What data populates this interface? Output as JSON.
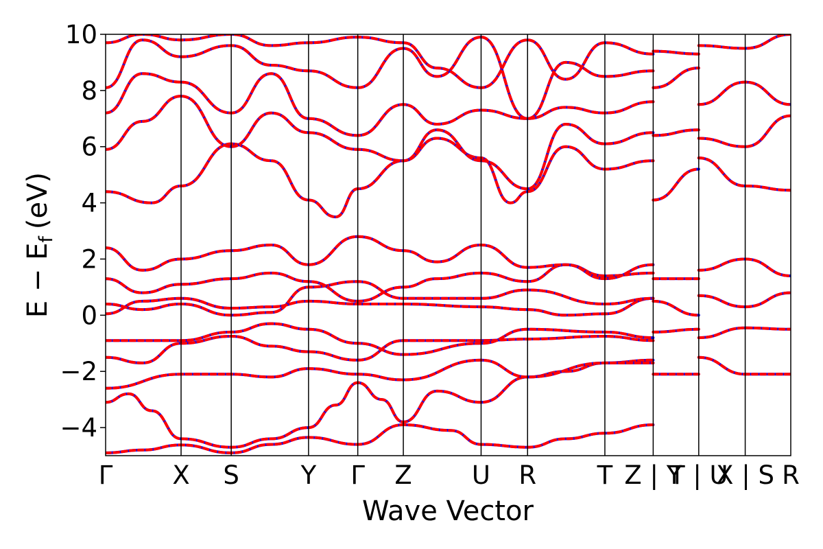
{
  "chart_data": {
    "type": "line",
    "xlabel": "Wave Vector",
    "ylabel": "E − E",
    "ylabel_subscript": "f",
    "ylabel_unit": "(eV)",
    "ylim": [
      -5,
      10
    ],
    "yticks": [
      -4,
      -2,
      0,
      2,
      4,
      6,
      8,
      10
    ],
    "ytick_labels": [
      "−4",
      "−2",
      "0",
      "2",
      "4",
      "6",
      "8",
      "10"
    ],
    "kpoints": [
      {
        "label": "Γ",
        "x": 0.0
      },
      {
        "label": "X",
        "x": 0.164
      },
      {
        "label": "S",
        "x": 0.273
      },
      {
        "label": "Y",
        "x": 0.441
      },
      {
        "label": "Γ",
        "x": 0.548
      },
      {
        "label": "Z",
        "x": 0.647
      },
      {
        "label": "U",
        "x": 0.816
      },
      {
        "label": "R",
        "x": 0.917
      },
      {
        "label": "T",
        "x": 1.085
      },
      {
        "label": "Z | Y",
        "x": 1.19
      },
      {
        "label": "T | U",
        "x": 1.289
      },
      {
        "label": "X | S",
        "x": 1.39
      },
      {
        "label": "R",
        "x": 1.489
      }
    ],
    "grid": false,
    "legend": "none",
    "series_style": [
      {
        "color": "#0000ff",
        "dash": "solid",
        "width": 4
      },
      {
        "color": "#ff0000",
        "dash": "dashed",
        "width": 4
      }
    ],
    "bands": [
      [
        [
          0.0,
          -4.9
        ],
        [
          0.08,
          -4.8
        ],
        [
          0.164,
          -4.62
        ],
        [
          0.273,
          -4.9
        ],
        [
          0.36,
          -4.6
        ],
        [
          0.441,
          -4.35
        ],
        [
          0.548,
          -4.6
        ],
        [
          0.647,
          -3.9
        ],
        [
          0.75,
          -4.1
        ],
        [
          0.816,
          -4.6
        ],
        [
          0.917,
          -4.7
        ],
        [
          1.0,
          -4.4
        ],
        [
          1.085,
          -4.2
        ],
        [
          1.19,
          -3.9
        ]
      ],
      [
        [
          0.0,
          -3.1
        ],
        [
          0.05,
          -2.8
        ],
        [
          0.1,
          -3.4
        ],
        [
          0.164,
          -4.4
        ],
        [
          0.273,
          -4.7
        ],
        [
          0.36,
          -4.4
        ],
        [
          0.441,
          -4.0
        ],
        [
          0.5,
          -3.2
        ],
        [
          0.548,
          -2.4
        ],
        [
          0.6,
          -3.0
        ],
        [
          0.647,
          -3.8
        ],
        [
          0.72,
          -2.7
        ],
        [
          0.816,
          -3.1
        ],
        [
          0.917,
          -2.2
        ],
        [
          1.0,
          -2.0
        ],
        [
          1.085,
          -1.7
        ],
        [
          1.19,
          -1.6
        ]
      ],
      [
        [
          0.0,
          -2.6
        ],
        [
          0.164,
          -2.1
        ],
        [
          0.273,
          -2.1
        ],
        [
          0.36,
          -2.2
        ],
        [
          0.441,
          -1.9
        ],
        [
          0.548,
          -2.1
        ],
        [
          0.647,
          -2.3
        ],
        [
          0.816,
          -1.6
        ],
        [
          0.917,
          -2.2
        ],
        [
          1.085,
          -1.7
        ],
        [
          1.19,
          -1.7
        ]
      ],
      [
        [
          0.0,
          -1.5
        ],
        [
          0.08,
          -1.7
        ],
        [
          0.164,
          -1.0
        ],
        [
          0.273,
          -0.75
        ],
        [
          0.36,
          -1.1
        ],
        [
          0.441,
          -1.3
        ],
        [
          0.548,
          -1.6
        ],
        [
          0.647,
          -0.9
        ],
        [
          0.816,
          -0.9
        ],
        [
          0.917,
          -0.85
        ],
        [
          1.085,
          -0.75
        ],
        [
          1.19,
          -0.9
        ]
      ],
      [
        [
          0.0,
          -0.9
        ],
        [
          0.164,
          -0.9
        ],
        [
          0.273,
          -0.6
        ],
        [
          0.36,
          -0.3
        ],
        [
          0.441,
          -0.5
        ],
        [
          0.548,
          -1.0
        ],
        [
          0.647,
          -1.4
        ],
        [
          0.816,
          -1.0
        ],
        [
          0.917,
          -0.5
        ],
        [
          1.085,
          -0.6
        ],
        [
          1.19,
          -0.8
        ]
      ],
      [
        [
          0.0,
          0.05
        ],
        [
          0.08,
          0.5
        ],
        [
          0.164,
          0.6
        ],
        [
          0.273,
          0.25
        ],
        [
          0.36,
          0.3
        ],
        [
          0.441,
          0.5
        ],
        [
          0.548,
          0.4
        ],
        [
          0.647,
          0.4
        ],
        [
          0.816,
          0.3
        ],
        [
          0.917,
          0.2
        ],
        [
          1.0,
          0.0
        ],
        [
          1.085,
          0.05
        ],
        [
          1.19,
          0.6
        ]
      ],
      [
        [
          0.0,
          0.4
        ],
        [
          0.08,
          0.2
        ],
        [
          0.164,
          0.4
        ],
        [
          0.273,
          0.0
        ],
        [
          0.36,
          0.1
        ],
        [
          0.441,
          1.0
        ],
        [
          0.548,
          1.2
        ],
        [
          0.647,
          0.6
        ],
        [
          0.816,
          0.6
        ],
        [
          0.917,
          0.9
        ],
        [
          1.085,
          0.4
        ],
        [
          1.19,
          0.6
        ]
      ],
      [
        [
          0.0,
          1.3
        ],
        [
          0.08,
          0.8
        ],
        [
          0.164,
          1.1
        ],
        [
          0.273,
          1.3
        ],
        [
          0.36,
          1.5
        ],
        [
          0.441,
          1.2
        ],
        [
          0.548,
          0.5
        ],
        [
          0.647,
          1.0
        ],
        [
          0.72,
          1.3
        ],
        [
          0.816,
          1.5
        ],
        [
          0.917,
          1.2
        ],
        [
          1.0,
          1.8
        ],
        [
          1.085,
          1.4
        ],
        [
          1.19,
          1.5
        ]
      ],
      [
        [
          0.0,
          2.4
        ],
        [
          0.08,
          1.6
        ],
        [
          0.164,
          2.0
        ],
        [
          0.273,
          2.3
        ],
        [
          0.36,
          2.5
        ],
        [
          0.441,
          1.8
        ],
        [
          0.548,
          2.8
        ],
        [
          0.647,
          2.3
        ],
        [
          0.72,
          1.9
        ],
        [
          0.816,
          2.5
        ],
        [
          0.917,
          1.7
        ],
        [
          1.0,
          1.8
        ],
        [
          1.085,
          1.3
        ],
        [
          1.19,
          1.8
        ]
      ],
      [
        [
          0.0,
          4.4
        ],
        [
          0.1,
          4.0
        ],
        [
          0.164,
          4.6
        ],
        [
          0.273,
          6.1
        ],
        [
          0.36,
          5.5
        ],
        [
          0.441,
          4.1
        ],
        [
          0.5,
          3.5
        ],
        [
          0.548,
          4.5
        ],
        [
          0.647,
          5.5
        ],
        [
          0.72,
          6.3
        ],
        [
          0.816,
          5.6
        ],
        [
          0.88,
          4.0
        ],
        [
          0.917,
          4.4
        ],
        [
          1.0,
          6.0
        ],
        [
          1.085,
          5.2
        ],
        [
          1.19,
          5.5
        ]
      ],
      [
        [
          0.0,
          5.9
        ],
        [
          0.08,
          6.9
        ],
        [
          0.164,
          7.8
        ],
        [
          0.273,
          6.0
        ],
        [
          0.36,
          7.2
        ],
        [
          0.441,
          6.5
        ],
        [
          0.548,
          5.9
        ],
        [
          0.647,
          5.5
        ],
        [
          0.72,
          6.6
        ],
        [
          0.816,
          5.5
        ],
        [
          0.917,
          4.5
        ],
        [
          1.0,
          6.8
        ],
        [
          1.085,
          6.1
        ],
        [
          1.19,
          6.5
        ]
      ],
      [
        [
          0.0,
          7.2
        ],
        [
          0.08,
          8.6
        ],
        [
          0.164,
          8.3
        ],
        [
          0.273,
          7.2
        ],
        [
          0.36,
          8.6
        ],
        [
          0.441,
          7.0
        ],
        [
          0.548,
          6.4
        ],
        [
          0.647,
          7.5
        ],
        [
          0.72,
          6.8
        ],
        [
          0.816,
          7.3
        ],
        [
          0.917,
          7.0
        ],
        [
          1.0,
          7.4
        ],
        [
          1.085,
          7.2
        ],
        [
          1.19,
          7.6
        ]
      ],
      [
        [
          0.0,
          8.1
        ],
        [
          0.08,
          9.8
        ],
        [
          0.164,
          9.2
        ],
        [
          0.273,
          9.6
        ],
        [
          0.36,
          8.9
        ],
        [
          0.441,
          8.7
        ],
        [
          0.548,
          8.1
        ],
        [
          0.647,
          9.5
        ],
        [
          0.72,
          8.5
        ],
        [
          0.816,
          9.9
        ],
        [
          0.917,
          7.0
        ],
        [
          1.0,
          9.0
        ],
        [
          1.085,
          8.5
        ],
        [
          1.19,
          8.7
        ]
      ],
      [
        [
          0.0,
          9.7
        ],
        [
          0.08,
          10.0
        ],
        [
          0.164,
          9.8
        ],
        [
          0.273,
          10.0
        ],
        [
          0.36,
          9.6
        ],
        [
          0.441,
          9.7
        ],
        [
          0.548,
          9.9
        ],
        [
          0.647,
          9.7
        ],
        [
          0.72,
          8.8
        ],
        [
          0.816,
          8.1
        ],
        [
          0.917,
          9.8
        ],
        [
          1.0,
          8.4
        ],
        [
          1.085,
          9.7
        ],
        [
          1.19,
          9.3
        ]
      ],
      [
        [
          1.19,
          -2.1
        ],
        [
          1.289,
          -2.1
        ],
        [
          1.289,
          -1.5
        ],
        [
          1.39,
          -2.1
        ],
        [
          1.489,
          -2.1
        ]
      ],
      [
        [
          1.19,
          -0.6
        ],
        [
          1.289,
          -0.5
        ],
        [
          1.289,
          -0.8
        ],
        [
          1.39,
          -0.45
        ],
        [
          1.489,
          -0.5
        ]
      ],
      [
        [
          1.19,
          0.5
        ],
        [
          1.289,
          0.0
        ],
        [
          1.289,
          0.7
        ],
        [
          1.39,
          0.3
        ],
        [
          1.489,
          0.8
        ]
      ],
      [
        [
          1.19,
          1.3
        ],
        [
          1.289,
          1.3
        ],
        [
          1.289,
          1.6
        ],
        [
          1.39,
          2.0
        ],
        [
          1.489,
          1.4
        ]
      ],
      [
        [
          1.19,
          4.1
        ],
        [
          1.289,
          5.2
        ],
        [
          1.289,
          5.6
        ],
        [
          1.39,
          4.6
        ],
        [
          1.489,
          4.45
        ]
      ],
      [
        [
          1.19,
          6.4
        ],
        [
          1.289,
          6.6
        ],
        [
          1.289,
          6.3
        ],
        [
          1.39,
          6.0
        ],
        [
          1.489,
          7.1
        ]
      ],
      [
        [
          1.19,
          8.1
        ],
        [
          1.289,
          8.8
        ],
        [
          1.289,
          7.5
        ],
        [
          1.39,
          8.3
        ],
        [
          1.489,
          7.5
        ]
      ],
      [
        [
          1.19,
          9.4
        ],
        [
          1.289,
          9.3
        ],
        [
          1.289,
          9.6
        ],
        [
          1.39,
          9.5
        ],
        [
          1.489,
          10.0
        ]
      ]
    ]
  }
}
